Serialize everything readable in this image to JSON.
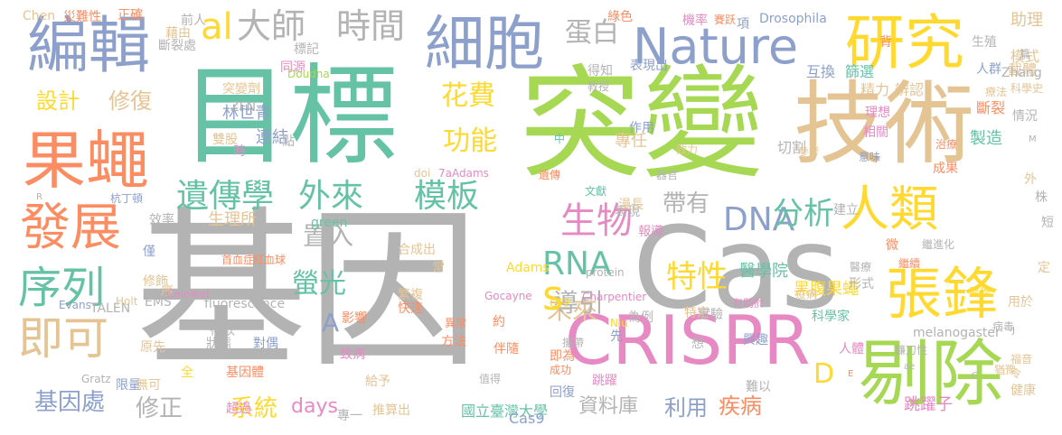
{
  "words": [
    "基因",
    "突變",
    "技術",
    "目標",
    "Cas",
    "剔除",
    "果蠅",
    "編輯",
    "細胞",
    "CRISPR",
    "張鋒",
    "研究",
    "人類",
    "Nature",
    "發展",
    "序列",
    "遺傳學",
    "外來",
    "模板",
    "即可",
    "大師",
    "時間",
    "蛋白",
    "生物",
    "DNA",
    "分析",
    "特性",
    "RNA",
    "未來",
    "導引",
    "螢光",
    "基因處",
    "修正",
    "系統",
    "days",
    "資料庫",
    "國立臺灣大學",
    "利用",
    "疾病",
    "設計",
    "修復",
    "花費",
    "功能",
    "帶有",
    "置入",
    "al",
    "s",
    "A",
    "D",
    "醫學院",
    "黑腹果蠅",
    "Cas9",
    "跳躍子",
    "Drosophila",
    "專任",
    "切割",
    "斷裂",
    "製造",
    "連結",
    "生理所",
    "林世青",
    "突變劑",
    "雙股",
    "合成出",
    "繁複",
    "快速",
    "異常",
    "方法",
    "常",
    "Adams",
    "ZFN",
    "TALEN",
    "EMS",
    "fluorescence",
    "melanogaster",
    "Gratz",
    "修飾",
    "原先",
    "全",
    "基因體",
    "超過",
    "推算出",
    "專一",
    "模式",
    "互換",
    "篩選",
    "助理",
    "精力",
    "辨認",
    "載體",
    "機率",
    "項",
    "綠色",
    "得知",
    "表現出",
    "作用",
    "為例",
    "特定",
    "實驗",
    "形式",
    "興趣",
    "科學家",
    "想",
    "約",
    "伴隨",
    "致病",
    "影響",
    "狀態",
    "對偶",
    "得以",
    "限量",
    "無可",
    "僅",
    "效率",
    "序",
    "green",
    "protein",
    "GFP",
    "攜帶",
    "跳躍",
    "即為",
    "成功",
    "回復",
    "值得",
    "給予",
    "前人",
    "藉由",
    "斷裂處",
    "標記",
    "同源",
    "點",
    "時",
    "表現",
    "漫長",
    "器官",
    "報導",
    "致力",
    "文獻",
    "遺傳",
    "中",
    "Doudna",
    "Zhang",
    "Charpentier",
    "Celniker",
    "Gocayne",
    "Holt",
    "Evans",
    "Chen",
    "災難性",
    "正確",
    "難以",
    "用於",
    "先",
    "Niu",
    "有助於",
    "人體",
    "福音",
    "令",
    "健康",
    "人群",
    "意味",
    "理想",
    "相關",
    "情況",
    "成果",
    "科學史",
    "治療",
    "醫學",
    "療法",
    "教授",
    "繼續",
    "生殖",
    "背",
    "建立",
    "微",
    "外",
    "株",
    "短",
    "定",
    "醫療",
    "繼進化",
    "首血症",
    "紅血球",
    "杭丁頓",
    "疫病",
    "病毒",
    "doi",
    "7aAdams",
    "參考",
    "鐮刀性",
    "猶豫",
    "賽跃",
    "篇",
    "M",
    "R",
    "C",
    "J",
    "E",
    "ae"
  ]
}
